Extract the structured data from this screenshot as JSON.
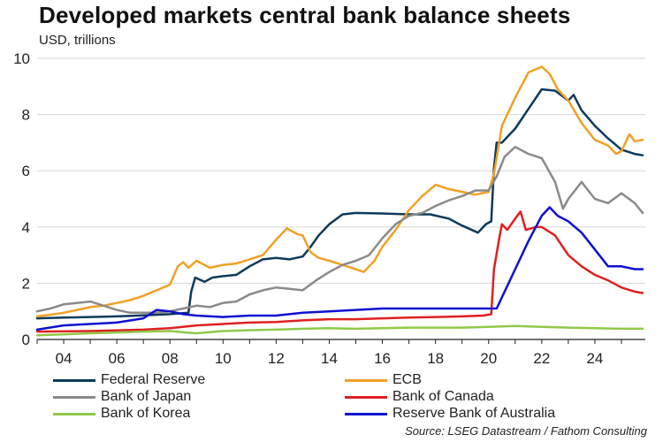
{
  "title": "Developed markets central bank balance sheets",
  "subtitle": "USD, trillions",
  "source": "Source: LSEG Datastream / Fathom Consulting",
  "chart_data": {
    "type": "line",
    "title": "Developed markets central bank balance sheets",
    "ylabel": "USD, trillions",
    "xlabel": "",
    "xlim": [
      2003,
      2025.9
    ],
    "ylim": [
      0,
      10
    ],
    "y_ticks": [
      0,
      2,
      4,
      6,
      8,
      10
    ],
    "x_ticks": [
      {
        "value": 2004,
        "label": "04"
      },
      {
        "value": 2006,
        "label": "06"
      },
      {
        "value": 2008,
        "label": "08"
      },
      {
        "value": 2010,
        "label": "10"
      },
      {
        "value": 2012,
        "label": "12"
      },
      {
        "value": 2014,
        "label": "14"
      },
      {
        "value": 2016,
        "label": "16"
      },
      {
        "value": 2018,
        "label": "18"
      },
      {
        "value": 2020,
        "label": "20"
      },
      {
        "value": 2022,
        "label": "22"
      },
      {
        "value": 2024,
        "label": "24"
      }
    ],
    "grid": "horizontal",
    "legend_position": "bottom",
    "series": [
      {
        "name": "Federal Reserve",
        "color": "#0d3a5c",
        "points": [
          [
            2003,
            0.75
          ],
          [
            2004,
            0.78
          ],
          [
            2005,
            0.8
          ],
          [
            2006,
            0.82
          ],
          [
            2007,
            0.86
          ],
          [
            2008,
            0.9
          ],
          [
            2008.7,
            0.95
          ],
          [
            2008.8,
            1.7
          ],
          [
            2008.95,
            2.2
          ],
          [
            2009.3,
            2.05
          ],
          [
            2009.6,
            2.2
          ],
          [
            2010,
            2.25
          ],
          [
            2010.5,
            2.3
          ],
          [
            2011,
            2.6
          ],
          [
            2011.5,
            2.85
          ],
          [
            2012,
            2.9
          ],
          [
            2012.5,
            2.85
          ],
          [
            2013,
            2.95
          ],
          [
            2013.3,
            3.3
          ],
          [
            2013.6,
            3.7
          ],
          [
            2014,
            4.1
          ],
          [
            2014.5,
            4.45
          ],
          [
            2015,
            4.5
          ],
          [
            2016,
            4.48
          ],
          [
            2017,
            4.45
          ],
          [
            2017.8,
            4.45
          ],
          [
            2018.5,
            4.3
          ],
          [
            2019,
            4.05
          ],
          [
            2019.6,
            3.8
          ],
          [
            2019.9,
            4.1
          ],
          [
            2020.1,
            4.2
          ],
          [
            2020.2,
            6.1
          ],
          [
            2020.3,
            7.0
          ],
          [
            2020.5,
            7.0
          ],
          [
            2021,
            7.5
          ],
          [
            2021.5,
            8.2
          ],
          [
            2022,
            8.9
          ],
          [
            2022.5,
            8.85
          ],
          [
            2023,
            8.5
          ],
          [
            2023.2,
            8.7
          ],
          [
            2023.5,
            8.15
          ],
          [
            2024,
            7.6
          ],
          [
            2024.5,
            7.15
          ],
          [
            2025,
            6.75
          ],
          [
            2025.5,
            6.6
          ],
          [
            2025.8,
            6.55
          ]
        ]
      },
      {
        "name": "ECB",
        "color": "#f2a024",
        "points": [
          [
            2003,
            0.82
          ],
          [
            2003.5,
            0.88
          ],
          [
            2004,
            0.95
          ],
          [
            2004.5,
            1.05
          ],
          [
            2005,
            1.15
          ],
          [
            2005.5,
            1.2
          ],
          [
            2006,
            1.3
          ],
          [
            2006.5,
            1.4
          ],
          [
            2007,
            1.55
          ],
          [
            2007.5,
            1.75
          ],
          [
            2008,
            1.95
          ],
          [
            2008.3,
            2.6
          ],
          [
            2008.5,
            2.75
          ],
          [
            2008.7,
            2.55
          ],
          [
            2009,
            2.8
          ],
          [
            2009.5,
            2.55
          ],
          [
            2010,
            2.65
          ],
          [
            2010.5,
            2.7
          ],
          [
            2011,
            2.85
          ],
          [
            2011.5,
            3.0
          ],
          [
            2012,
            3.55
          ],
          [
            2012.4,
            3.95
          ],
          [
            2012.8,
            3.75
          ],
          [
            2013,
            3.7
          ],
          [
            2013.3,
            3.1
          ],
          [
            2013.6,
            2.9
          ],
          [
            2014,
            2.8
          ],
          [
            2014.5,
            2.65
          ],
          [
            2015,
            2.5
          ],
          [
            2015.3,
            2.4
          ],
          [
            2015.7,
            2.8
          ],
          [
            2016,
            3.3
          ],
          [
            2016.5,
            3.9
          ],
          [
            2017,
            4.6
          ],
          [
            2017.5,
            5.1
          ],
          [
            2018,
            5.5
          ],
          [
            2018.5,
            5.35
          ],
          [
            2019,
            5.25
          ],
          [
            2019.5,
            5.15
          ],
          [
            2020,
            5.25
          ],
          [
            2020.2,
            5.9
          ],
          [
            2020.5,
            7.6
          ],
          [
            2021,
            8.6
          ],
          [
            2021.5,
            9.5
          ],
          [
            2022,
            9.7
          ],
          [
            2022.3,
            9.45
          ],
          [
            2022.6,
            8.9
          ],
          [
            2023,
            8.5
          ],
          [
            2023.5,
            7.7
          ],
          [
            2024,
            7.1
          ],
          [
            2024.5,
            6.9
          ],
          [
            2024.8,
            6.6
          ],
          [
            2025,
            6.7
          ],
          [
            2025.3,
            7.3
          ],
          [
            2025.5,
            7.05
          ],
          [
            2025.8,
            7.1
          ]
        ]
      },
      {
        "name": "Bank of Japan",
        "color": "#8a8a8a",
        "points": [
          [
            2003,
            1.0
          ],
          [
            2003.5,
            1.1
          ],
          [
            2004,
            1.25
          ],
          [
            2004.5,
            1.3
          ],
          [
            2005,
            1.35
          ],
          [
            2005.5,
            1.2
          ],
          [
            2006,
            1.05
          ],
          [
            2006.5,
            0.95
          ],
          [
            2007,
            0.95
          ],
          [
            2007.5,
            0.95
          ],
          [
            2008,
            1.0
          ],
          [
            2008.5,
            1.1
          ],
          [
            2009,
            1.2
          ],
          [
            2009.5,
            1.15
          ],
          [
            2010,
            1.3
          ],
          [
            2010.5,
            1.35
          ],
          [
            2011,
            1.6
          ],
          [
            2011.5,
            1.75
          ],
          [
            2012,
            1.85
          ],
          [
            2012.5,
            1.8
          ],
          [
            2013,
            1.75
          ],
          [
            2013.5,
            2.1
          ],
          [
            2014,
            2.4
          ],
          [
            2014.5,
            2.65
          ],
          [
            2015,
            2.8
          ],
          [
            2015.5,
            3.0
          ],
          [
            2016,
            3.6
          ],
          [
            2016.5,
            4.1
          ],
          [
            2017,
            4.4
          ],
          [
            2017.5,
            4.5
          ],
          [
            2018,
            4.75
          ],
          [
            2018.5,
            4.95
          ],
          [
            2019,
            5.1
          ],
          [
            2019.5,
            5.3
          ],
          [
            2020,
            5.3
          ],
          [
            2020.3,
            5.8
          ],
          [
            2020.6,
            6.5
          ],
          [
            2021,
            6.85
          ],
          [
            2021.5,
            6.6
          ],
          [
            2022,
            6.45
          ],
          [
            2022.5,
            5.6
          ],
          [
            2022.8,
            4.65
          ],
          [
            2023,
            5.0
          ],
          [
            2023.5,
            5.6
          ],
          [
            2024,
            5.0
          ],
          [
            2024.5,
            4.85
          ],
          [
            2025,
            5.2
          ],
          [
            2025.5,
            4.85
          ],
          [
            2025.8,
            4.5
          ]
        ]
      },
      {
        "name": "Bank of Canada",
        "color": "#e02020",
        "points": [
          [
            2003,
            0.28
          ],
          [
            2005,
            0.3
          ],
          [
            2007,
            0.35
          ],
          [
            2008,
            0.4
          ],
          [
            2009,
            0.5
          ],
          [
            2010,
            0.55
          ],
          [
            2011,
            0.6
          ],
          [
            2012,
            0.62
          ],
          [
            2013,
            0.68
          ],
          [
            2014,
            0.72
          ],
          [
            2015,
            0.72
          ],
          [
            2016,
            0.75
          ],
          [
            2017,
            0.78
          ],
          [
            2018,
            0.8
          ],
          [
            2019,
            0.82
          ],
          [
            2019.8,
            0.85
          ],
          [
            2020.1,
            0.9
          ],
          [
            2020.2,
            2.5
          ],
          [
            2020.4,
            3.6
          ],
          [
            2020.5,
            4.1
          ],
          [
            2020.7,
            3.9
          ],
          [
            2021,
            4.3
          ],
          [
            2021.2,
            4.55
          ],
          [
            2021.4,
            3.9
          ],
          [
            2021.8,
            4.0
          ],
          [
            2022,
            4.0
          ],
          [
            2022.5,
            3.7
          ],
          [
            2023,
            3.0
          ],
          [
            2023.5,
            2.6
          ],
          [
            2024,
            2.3
          ],
          [
            2024.5,
            2.1
          ],
          [
            2025,
            1.85
          ],
          [
            2025.5,
            1.7
          ],
          [
            2025.8,
            1.65
          ]
        ]
      },
      {
        "name": "Bank of Korea",
        "color": "#92c84a",
        "points": [
          [
            2003,
            0.15
          ],
          [
            2004,
            0.18
          ],
          [
            2005,
            0.22
          ],
          [
            2006,
            0.25
          ],
          [
            2007,
            0.28
          ],
          [
            2008,
            0.3
          ],
          [
            2008.6,
            0.25
          ],
          [
            2009,
            0.22
          ],
          [
            2010,
            0.3
          ],
          [
            2011,
            0.33
          ],
          [
            2012,
            0.35
          ],
          [
            2013,
            0.38
          ],
          [
            2014,
            0.4
          ],
          [
            2015,
            0.38
          ],
          [
            2016,
            0.4
          ],
          [
            2017,
            0.42
          ],
          [
            2018,
            0.42
          ],
          [
            2019,
            0.42
          ],
          [
            2020,
            0.45
          ],
          [
            2021,
            0.48
          ],
          [
            2022,
            0.45
          ],
          [
            2023,
            0.42
          ],
          [
            2024,
            0.4
          ],
          [
            2025,
            0.38
          ],
          [
            2025.8,
            0.38
          ]
        ]
      },
      {
        "name": "Reserve Bank of Australia",
        "color": "#1010d0",
        "points": [
          [
            2003,
            0.35
          ],
          [
            2004,
            0.5
          ],
          [
            2005,
            0.55
          ],
          [
            2006,
            0.6
          ],
          [
            2007,
            0.75
          ],
          [
            2007.5,
            1.05
          ],
          [
            2008,
            1.0
          ],
          [
            2008.5,
            0.9
          ],
          [
            2009,
            0.85
          ],
          [
            2010,
            0.8
          ],
          [
            2011,
            0.85
          ],
          [
            2012,
            0.85
          ],
          [
            2013,
            0.95
          ],
          [
            2014,
            1.0
          ],
          [
            2015,
            1.05
          ],
          [
            2016,
            1.1
          ],
          [
            2017,
            1.1
          ],
          [
            2018,
            1.1
          ],
          [
            2019,
            1.1
          ],
          [
            2020,
            1.1
          ],
          [
            2020.3,
            1.1
          ],
          [
            2020.5,
            1.5
          ],
          [
            2021,
            2.5
          ],
          [
            2021.5,
            3.5
          ],
          [
            2022,
            4.4
          ],
          [
            2022.3,
            4.7
          ],
          [
            2022.6,
            4.4
          ],
          [
            2023,
            4.2
          ],
          [
            2023.5,
            3.8
          ],
          [
            2024,
            3.2
          ],
          [
            2024.5,
            2.6
          ],
          [
            2025,
            2.6
          ],
          [
            2025.5,
            2.5
          ],
          [
            2025.8,
            2.5
          ]
        ]
      }
    ]
  }
}
